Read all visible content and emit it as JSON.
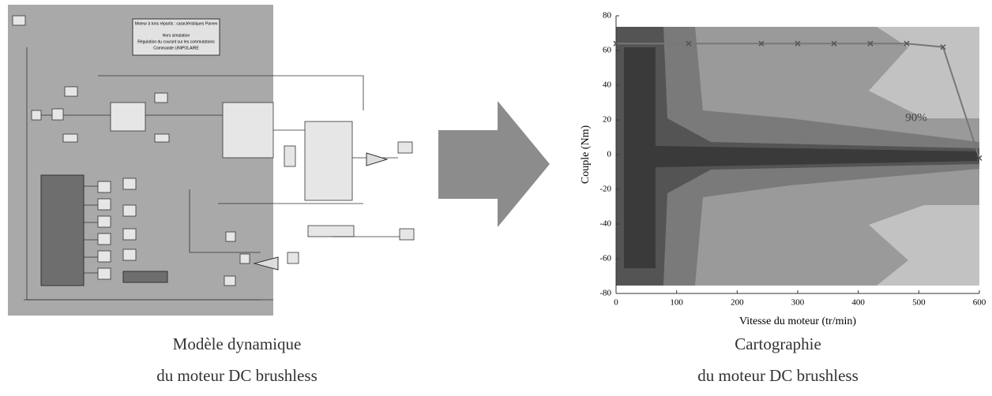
{
  "model": {
    "title_lines": [
      "Moteur à tons répartis : caractéristiques Parvex",
      "Hors simulation",
      "Régulation du courant sur les commutations",
      "Commande UNIPOLAIRE"
    ],
    "caption": [
      "Modèle dynamique",
      "du moteur DC brushless"
    ]
  },
  "chart_data": {
    "type": "line",
    "xlabel": "Vitesse du moteur (tr/min)",
    "ylabel": "Couple (Nm)",
    "annotation": "90%",
    "x": [
      0,
      120,
      240,
      300,
      360,
      420,
      480,
      540,
      600
    ],
    "values": [
      64,
      64,
      64,
      64,
      64,
      64,
      64,
      62,
      -2
    ],
    "color": "#777777",
    "xlim": [
      0,
      600
    ],
    "xticks": [
      0,
      100,
      200,
      300,
      400,
      500,
      600
    ],
    "ylim": [
      -80,
      80
    ],
    "yticks": [
      -80,
      -60,
      -40,
      -20,
      0,
      20,
      40,
      60,
      80
    ],
    "caption": [
      "Cartographie",
      "du moteur DC brushless"
    ]
  }
}
